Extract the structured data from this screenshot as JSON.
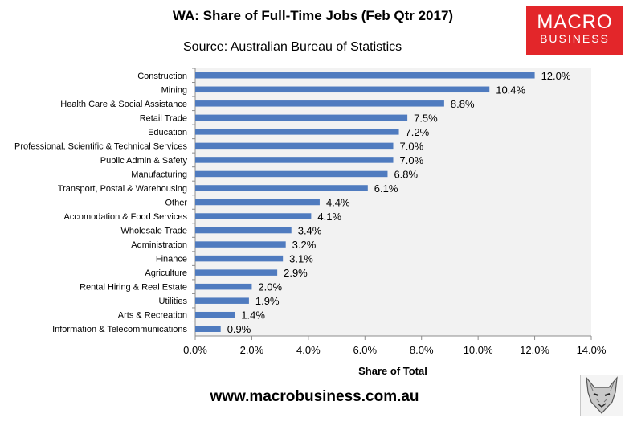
{
  "title": "WA: Share of Full-Time Jobs (Feb Qtr 2017)",
  "source": "Source: Australian Bureau of Statistics",
  "logo": {
    "line1": "MACRO",
    "line2": "BUSINESS"
  },
  "footer": "www.macrobusiness.com.au",
  "colors": {
    "bar": "#4f7bbf",
    "plot_bg": "#f2f2f2",
    "logo_red": "#e3262a"
  },
  "chart_data": {
    "type": "bar",
    "orientation": "horizontal",
    "categories": [
      "Construction",
      "Mining",
      "Health Care & Social Assistance",
      "Retail Trade",
      "Education",
      "Professional, Scientific & Technical Services",
      "Public Admin & Safety",
      "Manufacturing",
      "Transport, Postal & Warehousing",
      "Other",
      "Accomodation & Food Services",
      "Wholesale Trade",
      "Administration",
      "Finance",
      "Agriculture",
      "Rental Hiring & Real Estate",
      "Utilities",
      "Arts & Recreation",
      "Information & Telecommunications"
    ],
    "values": [
      12.0,
      10.4,
      8.8,
      7.5,
      7.2,
      7.0,
      7.0,
      6.8,
      6.1,
      4.4,
      4.1,
      3.4,
      3.2,
      3.1,
      2.9,
      2.0,
      1.9,
      1.4,
      0.9
    ],
    "data_labels": [
      "12.0%",
      "10.4%",
      "8.8%",
      "7.5%",
      "7.2%",
      "7.0%",
      "7.0%",
      "6.8%",
      "6.1%",
      "4.4%",
      "4.1%",
      "3.4%",
      "3.2%",
      "3.1%",
      "2.9%",
      "2.0%",
      "1.9%",
      "1.4%",
      "0.9%"
    ],
    "xlabel": "Share of Total",
    "xlim": [
      0,
      14
    ],
    "xticks": [
      0,
      2,
      4,
      6,
      8,
      10,
      12,
      14
    ],
    "xtick_labels": [
      "0.0%",
      "2.0%",
      "4.0%",
      "6.0%",
      "8.0%",
      "10.0%",
      "12.0%",
      "14.0%"
    ],
    "grid": false,
    "legend": "none"
  }
}
